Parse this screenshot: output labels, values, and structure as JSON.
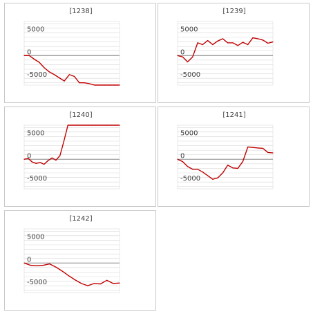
{
  "colors": {
    "line": "#c00000",
    "grid": "#d9d9d9",
    "zero": "#868686",
    "border": "#c8c8c8"
  },
  "chart_data": [
    {
      "type": "line",
      "title": "[1238]",
      "ylim": [
        -6500,
        7500
      ],
      "yticks": [
        5000,
        0,
        -5000
      ],
      "grid": true,
      "x": [
        0,
        1,
        2,
        3,
        4,
        5,
        6,
        7,
        8,
        9,
        10,
        11,
        12,
        13,
        14,
        15,
        16,
        17,
        18,
        19
      ],
      "values": [
        0,
        0,
        -800,
        -1500,
        -2700,
        -3600,
        -4200,
        -4900,
        -5600,
        -4200,
        -4600,
        -6000,
        -6000,
        -6200,
        -6500,
        -6500,
        -6500,
        -6500,
        -6500,
        -6500
      ]
    },
    {
      "type": "line",
      "title": "[1239]",
      "ylim": [
        -6500,
        7500
      ],
      "yticks": [
        5000,
        0,
        -5000
      ],
      "grid": true,
      "x": [
        0,
        1,
        2,
        3,
        4,
        5,
        6,
        7,
        8,
        9,
        10,
        11,
        12,
        13,
        14,
        15,
        16,
        17,
        18,
        19
      ],
      "values": [
        0,
        -300,
        -1400,
        -300,
        2800,
        2400,
        3300,
        2400,
        3200,
        3700,
        2800,
        2800,
        2200,
        2900,
        2400,
        3900,
        3700,
        3400,
        2700,
        3000
      ]
    },
    {
      "type": "line",
      "title": "[1240]",
      "ylim": [
        -6500,
        7500
      ],
      "yticks": [
        5000,
        0,
        -5000
      ],
      "grid": true,
      "x": [
        0,
        1,
        2,
        3,
        4,
        5,
        6,
        7,
        8,
        9,
        10,
        11,
        12,
        13,
        14,
        15,
        16,
        17,
        18,
        19,
        20,
        21,
        22,
        23,
        24
      ],
      "values": [
        0,
        200,
        -600,
        -900,
        -700,
        -1100,
        -300,
        300,
        -200,
        800,
        4000,
        7500,
        7500,
        7500,
        7500,
        7500,
        7500,
        7500,
        7500,
        7500,
        7500,
        7500,
        7500,
        7500,
        7500
      ]
    },
    {
      "type": "line",
      "title": "[1241]",
      "ylim": [
        -6500,
        7500
      ],
      "yticks": [
        5000,
        0,
        -5000
      ],
      "grid": true,
      "x": [
        0,
        1,
        2,
        3,
        4,
        5,
        6,
        7,
        8,
        9,
        10,
        11,
        12,
        13,
        14,
        15,
        16,
        17,
        18,
        19
      ],
      "values": [
        0,
        -500,
        -1600,
        -2200,
        -2200,
        -2800,
        -3600,
        -4400,
        -4100,
        -3000,
        -1300,
        -1900,
        -2000,
        -500,
        2700,
        2600,
        2500,
        2400,
        1500,
        1400
      ]
    },
    {
      "type": "line",
      "title": "[1242]",
      "ylim": [
        -6500,
        7500
      ],
      "yticks": [
        5000,
        0,
        -5000
      ],
      "grid": true,
      "x": [
        0,
        1,
        2,
        3,
        4,
        5,
        6,
        7,
        8,
        9,
        10,
        11,
        12,
        13,
        14,
        15
      ],
      "values": [
        0,
        -500,
        -600,
        -500,
        -200,
        -900,
        -1800,
        -2800,
        -3700,
        -4500,
        -5000,
        -4500,
        -4600,
        -3800,
        -4500,
        -4400
      ]
    }
  ]
}
